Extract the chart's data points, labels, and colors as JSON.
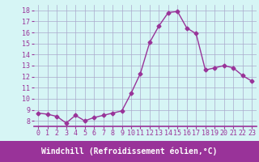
{
  "x": [
    0,
    1,
    2,
    3,
    4,
    5,
    6,
    7,
    8,
    9,
    10,
    11,
    12,
    13,
    14,
    15,
    16,
    17,
    18,
    19,
    20,
    21,
    22,
    23
  ],
  "y": [
    8.7,
    8.6,
    8.4,
    7.8,
    8.5,
    8.0,
    8.3,
    8.5,
    8.7,
    8.9,
    10.5,
    12.3,
    15.1,
    16.6,
    17.8,
    17.9,
    16.4,
    15.9,
    12.6,
    12.8,
    13.0,
    12.8,
    12.1,
    11.6
  ],
  "line_color": "#993399",
  "marker": "D",
  "marker_size": 2.5,
  "line_width": 1.0,
  "xlabel": "Windchill (Refroidissement éolien,°C)",
  "xlabel_fontsize": 7,
  "tick_fontsize": 6,
  "xtick_labels": [
    "0",
    "1",
    "2",
    "3",
    "4",
    "5",
    "6",
    "7",
    "8",
    "9",
    "10",
    "11",
    "12",
    "13",
    "14",
    "15",
    "16",
    "17",
    "18",
    "19",
    "20",
    "21",
    "22",
    "23"
  ],
  "ytick_values": [
    8,
    9,
    10,
    11,
    12,
    13,
    14,
    15,
    16,
    17,
    18
  ],
  "ylim": [
    7.5,
    18.5
  ],
  "xlim": [
    -0.5,
    23.5
  ],
  "bg_color": "#d6f5f5",
  "grid_color": "#aaaacc",
  "purple_color": "#993399",
  "xlabel_bg": "#993399",
  "xlabel_fg": "#ffffff"
}
